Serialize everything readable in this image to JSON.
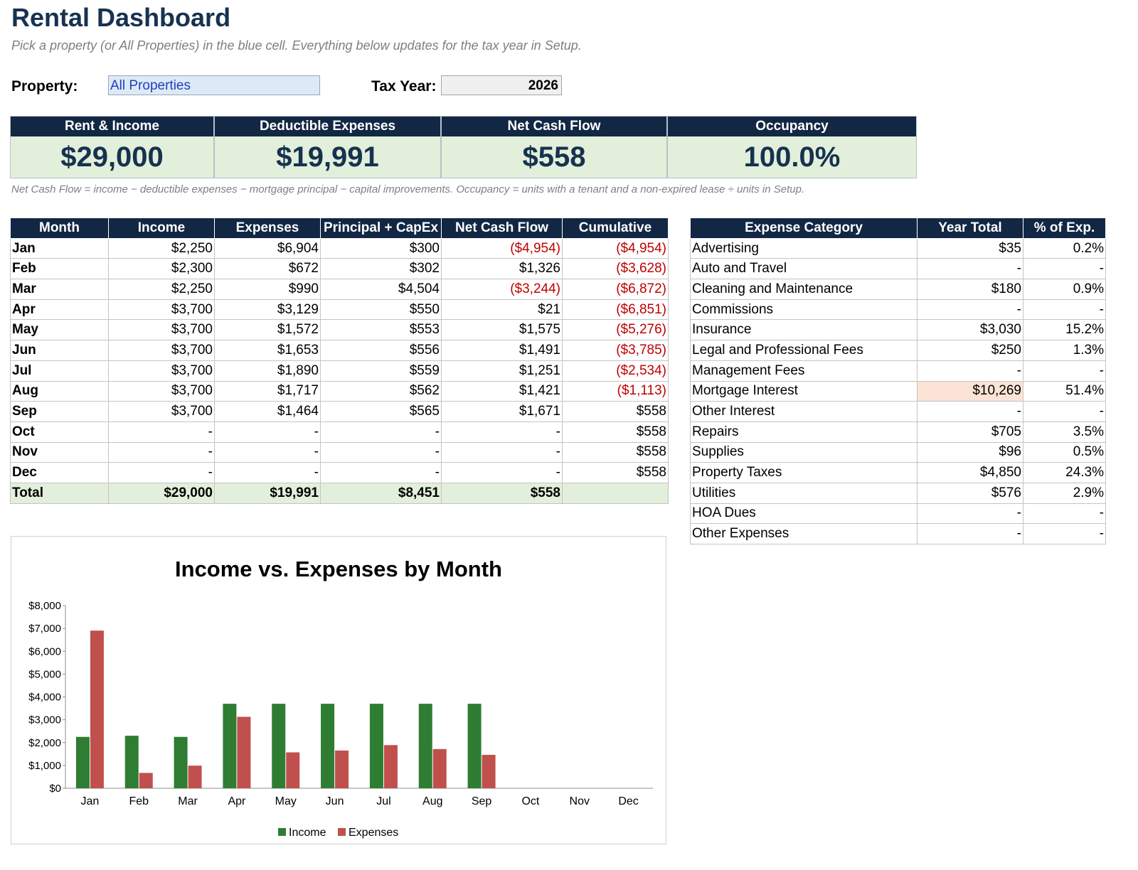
{
  "header": {
    "title": "Rental Dashboard",
    "subtitle": "Pick a property (or All Properties) in the blue cell. Everything below updates for the tax year in Setup."
  },
  "controls": {
    "property_label": "Property:",
    "property_value": "All Properties",
    "year_label": "Tax Year:",
    "year_value": "2026"
  },
  "kpis": [
    {
      "label": "Rent & Income",
      "value": "$29,000"
    },
    {
      "label": "Deductible Expenses",
      "value": "$19,991"
    },
    {
      "label": "Net Cash Flow",
      "value": "$558"
    },
    {
      "label": "Occupancy",
      "value": "100.0%"
    }
  ],
  "note": "Net Cash Flow = income − deductible expenses − mortgage principal − capital improvements. Occupancy = units with a tenant and a non-expired lease ÷ units in Setup.",
  "monthly": {
    "headers": [
      "Month",
      "Income",
      "Expenses",
      "Principal + CapEx",
      "Net Cash Flow",
      "Cumulative"
    ],
    "rows": [
      [
        "Jan",
        "$2,250",
        "$6,904",
        "$300",
        "($4,954)",
        "($4,954)"
      ],
      [
        "Feb",
        "$2,300",
        "$672",
        "$302",
        "$1,326",
        "($3,628)"
      ],
      [
        "Mar",
        "$2,250",
        "$990",
        "$4,504",
        "($3,244)",
        "($6,872)"
      ],
      [
        "Apr",
        "$3,700",
        "$3,129",
        "$550",
        "$21",
        "($6,851)"
      ],
      [
        "May",
        "$3,700",
        "$1,572",
        "$553",
        "$1,575",
        "($5,276)"
      ],
      [
        "Jun",
        "$3,700",
        "$1,653",
        "$556",
        "$1,491",
        "($3,785)"
      ],
      [
        "Jul",
        "$3,700",
        "$1,890",
        "$559",
        "$1,251",
        "($2,534)"
      ],
      [
        "Aug",
        "$3,700",
        "$1,717",
        "$562",
        "$1,421",
        "($1,113)"
      ],
      [
        "Sep",
        "$3,700",
        "$1,464",
        "$565",
        "$1,671",
        "$558"
      ],
      [
        "Oct",
        "-",
        "-",
        "-",
        "-",
        "$558"
      ],
      [
        "Nov",
        "-",
        "-",
        "-",
        "-",
        "$558"
      ],
      [
        "Dec",
        "-",
        "-",
        "-",
        "-",
        "$558"
      ]
    ],
    "total": [
      "Total",
      "$29,000",
      "$19,991",
      "$8,451",
      "$558",
      ""
    ]
  },
  "categories": {
    "headers": [
      "Expense Category",
      "Year Total",
      "% of Exp."
    ],
    "rows": [
      [
        "Advertising",
        "$35",
        "0.2%"
      ],
      [
        "Auto and Travel",
        "-",
        "-"
      ],
      [
        "Cleaning and Maintenance",
        "$180",
        "0.9%"
      ],
      [
        "Commissions",
        "-",
        "-"
      ],
      [
        "Insurance",
        "$3,030",
        "15.2%"
      ],
      [
        "Legal and Professional Fees",
        "$250",
        "1.3%"
      ],
      [
        "Management Fees",
        "-",
        "-"
      ],
      [
        "Mortgage Interest",
        "$10,269",
        "51.4%"
      ],
      [
        "Other Interest",
        "-",
        "-"
      ],
      [
        "Repairs",
        "$705",
        "3.5%"
      ],
      [
        "Supplies",
        "$96",
        "0.5%"
      ],
      [
        "Property Taxes",
        "$4,850",
        "24.3%"
      ],
      [
        "Utilities",
        "$576",
        "2.9%"
      ],
      [
        "HOA Dues",
        "-",
        "-"
      ],
      [
        "Other Expenses",
        "-",
        "-"
      ]
    ],
    "highlight_color": "#fbe3d6"
  },
  "colors": {
    "header_bg": "#122744",
    "kpi_bg": "#e2efda",
    "negative": "#c00000",
    "income": "#2e7d32",
    "expenses": "#c0504d"
  },
  "chart_data": {
    "type": "bar",
    "title": "Income vs. Expenses by Month",
    "categories": [
      "Jan",
      "Feb",
      "Mar",
      "Apr",
      "May",
      "Jun",
      "Jul",
      "Aug",
      "Sep",
      "Oct",
      "Nov",
      "Dec"
    ],
    "series": [
      {
        "name": "Income",
        "values": [
          2250,
          2300,
          2250,
          3700,
          3700,
          3700,
          3700,
          3700,
          3700,
          0,
          0,
          0
        ]
      },
      {
        "name": "Expenses",
        "values": [
          6904,
          672,
          990,
          3129,
          1572,
          1653,
          1890,
          1717,
          1464,
          0,
          0,
          0
        ]
      }
    ],
    "ylim": [
      0,
      8000
    ],
    "yticks": [
      "$0",
      "$1,000",
      "$2,000",
      "$3,000",
      "$4,000",
      "$5,000",
      "$6,000",
      "$7,000",
      "$8,000"
    ],
    "legend": "bottom",
    "grid": false
  }
}
